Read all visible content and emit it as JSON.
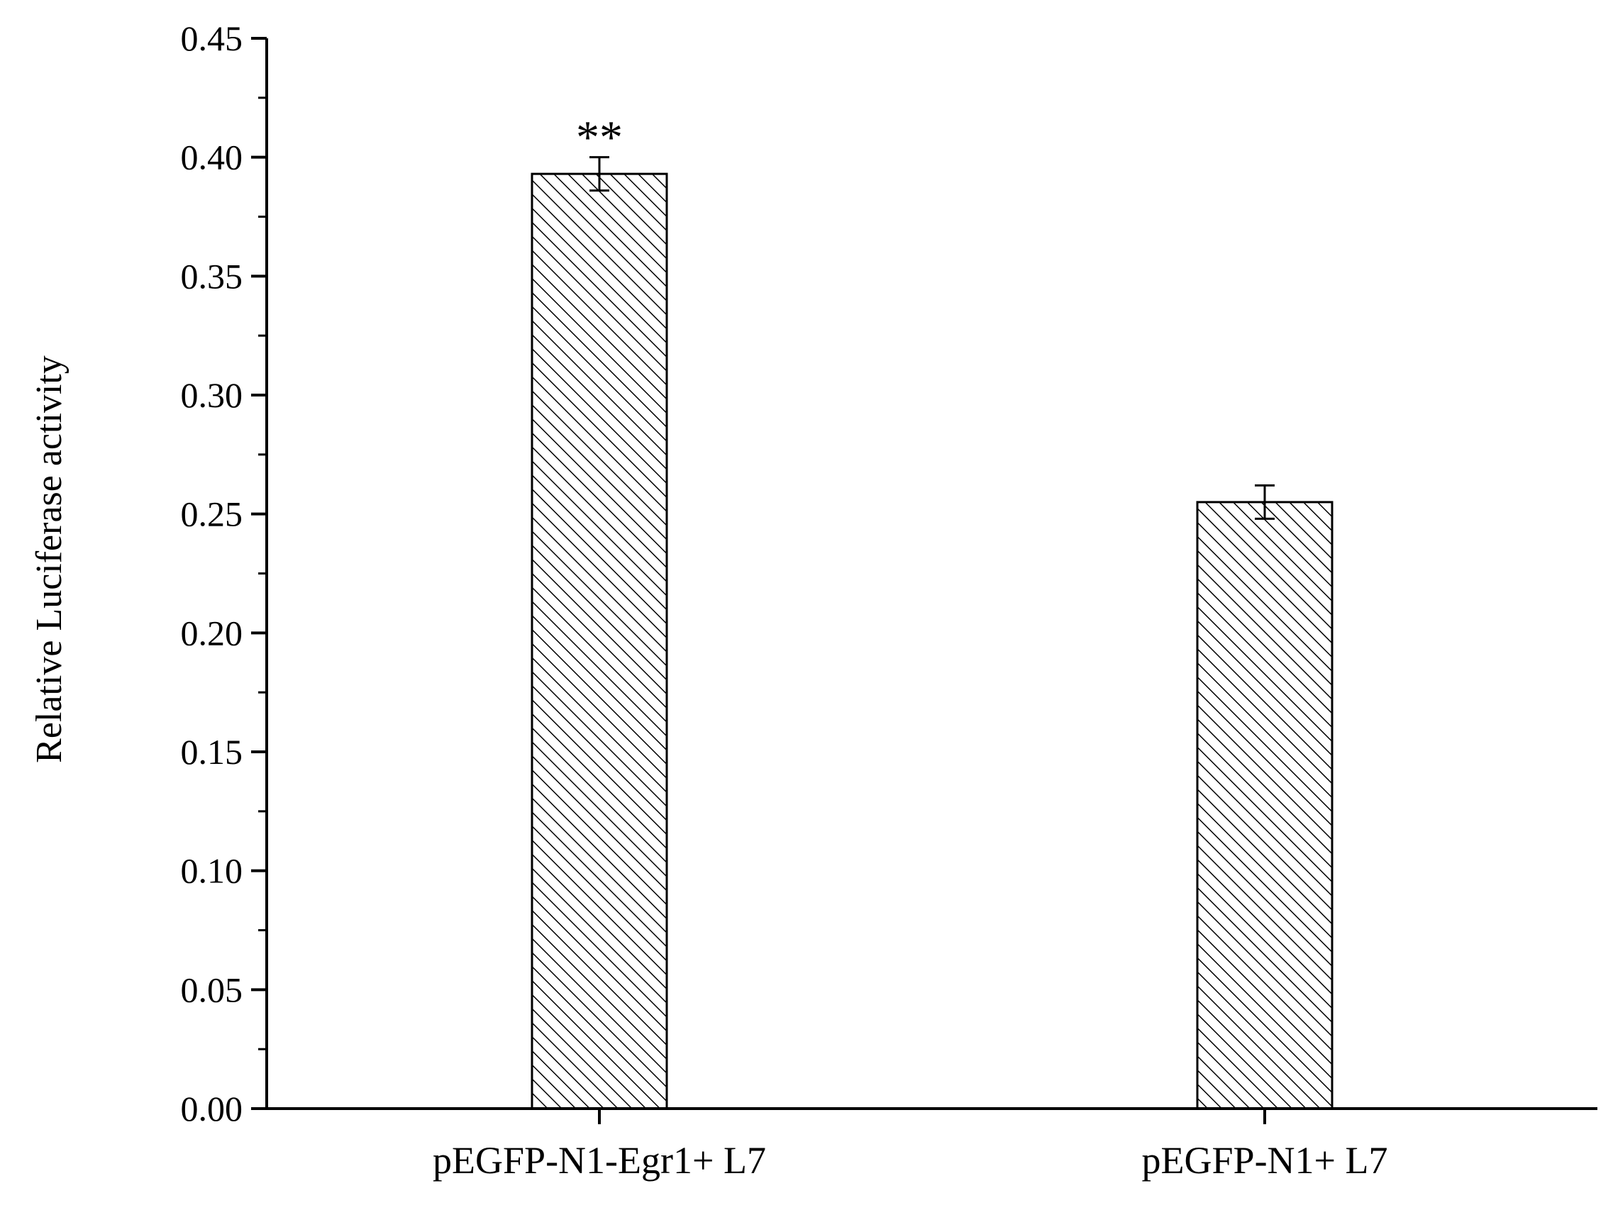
{
  "chart_data": {
    "type": "bar",
    "title": "",
    "xlabel": "",
    "ylabel": "Relative Luciferase activity",
    "categories": [
      "pEGFP-N1-Egr1+ L7",
      "pEGFP-N1+ L7"
    ],
    "values": [
      0.393,
      0.255
    ],
    "errors": [
      0.007,
      0.007
    ],
    "annotations": [
      "**",
      ""
    ],
    "ylim": [
      0,
      0.45
    ],
    "yticks": [
      "0.00",
      "0.05",
      "0.10",
      "0.15",
      "0.20",
      "0.25",
      "0.30",
      "0.35",
      "0.40",
      "0.45"
    ],
    "grid": false,
    "legend": "none",
    "bar_pattern": "diagonal-hatch",
    "colors": {
      "bar_fill": "#ffffff",
      "bar_hatch": "#000000",
      "axis": "#000000"
    }
  }
}
